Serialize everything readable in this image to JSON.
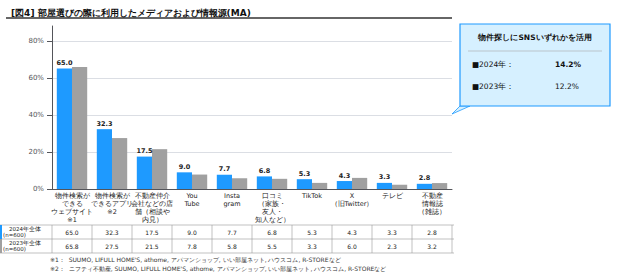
{
  "chart_data": {
    "type": "bar",
    "title": "[図4] 部屋選びの際に利用したメディアおよび情報源(MA)",
    "categories": [
      "物件検索が\nできる\nウェブサイト\n※1",
      "物件検索が\nできるアプリ\n※2",
      "不動産仲介\n会社などの店\n舗（相談や\n内見）",
      "You\nTube",
      "Insta\ngram",
      "口コミ\n（家族・\n友人・\n知人など）",
      "TikTok",
      "X\n（旧Twitter）",
      "テレビ",
      "不動産\n情報誌\n（雑誌）"
    ],
    "series": [
      {
        "name": "　2024年全体\n(n=600)",
        "color": "#1E9AFF",
        "values": [
          65.0,
          32.3,
          17.5,
          9.0,
          7.7,
          6.8,
          5.3,
          4.3,
          3.3,
          2.8
        ],
        "value_labels": [
          "65.0",
          "32.3",
          "17.5",
          "9.0",
          "7.7",
          "6.8",
          "5.3",
          "4.3",
          "3.3",
          "2.8"
        ]
      },
      {
        "name": "　2023年全体\n(n=600)",
        "color": "#A0A0A0",
        "values": [
          65.8,
          27.5,
          21.5,
          7.8,
          5.8,
          5.5,
          3.3,
          6.0,
          2.3,
          3.2
        ],
        "value_labels": [
          "65.8",
          "27.5",
          "21.5",
          "7.8",
          "5.8",
          "5.5",
          "3.3",
          "6.0",
          "2.3",
          "3.2"
        ]
      }
    ],
    "ylim": [
      0,
      88
    ],
    "yticks": [
      {
        "value": 0,
        "label": "0%"
      },
      {
        "value": 20,
        "label": "20%"
      },
      {
        "value": 40,
        "label": "40%"
      },
      {
        "value": 60,
        "label": "60%"
      },
      {
        "value": 80,
        "label": "80%"
      }
    ],
    "grid": true,
    "data_labels": true,
    "footnotes": [
      "※1：  SUUMO, LIFULL HOME'S, athome, アパマンショップ, いい部屋ネット, ハウスコム, R-STOREなど",
      "※2：  ニフティ不動産, SUUMO, LIFULL HOME'S, athome, アパマンショップ, いい部屋ネット, ハウスコム, R-STOREなど"
    ],
    "callout": {
      "title": "物件探しにSNSいずれかを活用",
      "color": "#D6F0FF",
      "rows": [
        {
          "label": "■2024年：",
          "value": "14.2%"
        },
        {
          "label": "■2023年：",
          "value": "12.2%"
        }
      ]
    }
  }
}
